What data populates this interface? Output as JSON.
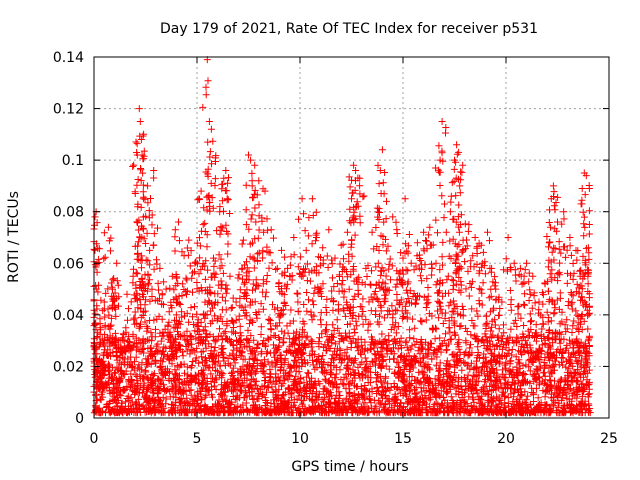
{
  "chart_data": {
    "type": "scatter",
    "title": "Day 179 of 2021, Rate Of TEC Index for receiver p531",
    "xlabel": "GPS time / hours",
    "ylabel": "ROTI / TECUs",
    "xlim": [
      0,
      25
    ],
    "ylim": [
      0,
      0.14
    ],
    "xticks": [
      "0",
      "5",
      "10",
      "15",
      "20",
      "25"
    ],
    "yticks": [
      "0",
      "0.02",
      "0.04",
      "0.06",
      "0.08",
      "0.1",
      "0.12",
      "0.14"
    ],
    "grid": true,
    "marker": "+",
    "color": "#ff0000",
    "series": [
      {
        "name": "ROTI",
        "x": [
          0.05,
          0.1,
          0.15,
          0.3,
          0.5,
          0.7,
          0.9,
          1.1,
          1.3,
          1.6,
          1.9,
          2.1,
          2.2,
          2.25,
          2.3,
          2.4,
          2.6,
          2.7,
          2.9,
          3.2,
          3.5,
          3.8,
          4.0,
          4.1,
          4.3,
          4.6,
          4.9,
          5.1,
          5.2,
          5.3,
          5.5,
          5.6,
          5.7,
          5.8,
          6.1,
          6.3,
          6.4,
          6.6,
          6.9,
          7.2,
          7.4,
          7.5,
          7.6,
          7.8,
          8.0,
          8.3,
          8.6,
          8.9,
          9.1,
          9.4,
          9.7,
          9.9,
          10.1,
          10.3,
          10.6,
          10.8,
          11.1,
          11.4,
          11.7,
          12.0,
          12.3,
          12.5,
          12.6,
          12.7,
          12.9,
          13.2,
          13.5,
          13.8,
          13.9,
          14.0,
          14.2,
          14.5,
          14.8,
          15.0,
          15.1,
          15.4,
          15.7,
          16.0,
          16.3,
          16.6,
          16.8,
          16.9,
          17.1,
          17.3,
          17.5,
          17.6,
          17.7,
          17.9,
          18.2,
          18.5,
          18.8,
          19.1,
          19.3,
          19.5,
          19.8,
          20.1,
          20.4,
          20.7,
          21.0,
          21.3,
          21.6,
          21.9,
          22.1,
          22.2,
          22.3,
          22.5,
          22.8,
          23.1,
          23.4,
          23.6,
          23.7,
          23.8,
          23.9,
          24.0
        ],
        "y": [
          0.078,
          0.08,
          0.06,
          0.035,
          0.045,
          0.074,
          0.05,
          0.06,
          0.03,
          0.048,
          0.055,
          0.102,
          0.12,
          0.115,
          0.108,
          0.085,
          0.09,
          0.065,
          0.096,
          0.058,
          0.05,
          0.055,
          0.04,
          0.076,
          0.052,
          0.069,
          0.06,
          0.085,
          0.088,
          0.075,
          0.139,
          0.115,
          0.112,
          0.062,
          0.08,
          0.093,
          0.096,
          0.055,
          0.045,
          0.058,
          0.075,
          0.102,
          0.1,
          0.098,
          0.092,
          0.088,
          0.073,
          0.058,
          0.065,
          0.058,
          0.07,
          0.045,
          0.085,
          0.065,
          0.085,
          0.07,
          0.066,
          0.073,
          0.062,
          0.067,
          0.072,
          0.085,
          0.098,
          0.096,
          0.093,
          0.058,
          0.072,
          0.06,
          0.096,
          0.104,
          0.084,
          0.078,
          0.056,
          0.062,
          0.085,
          0.06,
          0.068,
          0.072,
          0.074,
          0.06,
          0.1,
          0.115,
          0.072,
          0.08,
          0.1,
          0.106,
          0.103,
          0.098,
          0.075,
          0.07,
          0.067,
          0.072,
          0.058,
          0.05,
          0.045,
          0.07,
          0.06,
          0.058,
          0.06,
          0.055,
          0.045,
          0.052,
          0.068,
          0.085,
          0.09,
          0.076,
          0.08,
          0.07,
          0.065,
          0.055,
          0.089,
          0.095,
          0.094,
          0.066
        ]
      }
    ],
    "density_note": "dense band of points 0.002-0.03 across 0-24 h with spikes up to 0.14"
  }
}
